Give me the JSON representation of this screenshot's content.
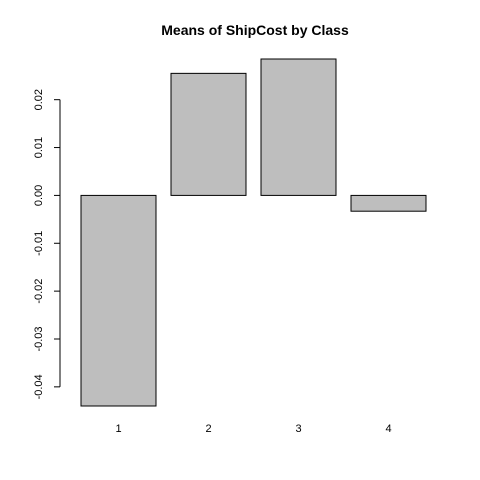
{
  "chart_data": {
    "type": "bar",
    "title": "Means of ShipCost by Class",
    "xlabel": "",
    "ylabel": "",
    "categories": [
      "1",
      "2",
      "3",
      "4"
    ],
    "values": [
      -0.044,
      0.0255,
      0.0285,
      -0.0033
    ],
    "ylim": [
      -0.044,
      0.0285
    ],
    "yticks": [
      -0.04,
      -0.03,
      -0.02,
      -0.01,
      0.0,
      0.01,
      0.02
    ],
    "ytick_labels": [
      "-0.04",
      "-0.03",
      "-0.02",
      "-0.01",
      "0.00",
      "0.01",
      "0.02"
    ],
    "grid": false,
    "legend": "none",
    "bar_color": "#bebebe",
    "bar_edge_color": "#000000"
  }
}
